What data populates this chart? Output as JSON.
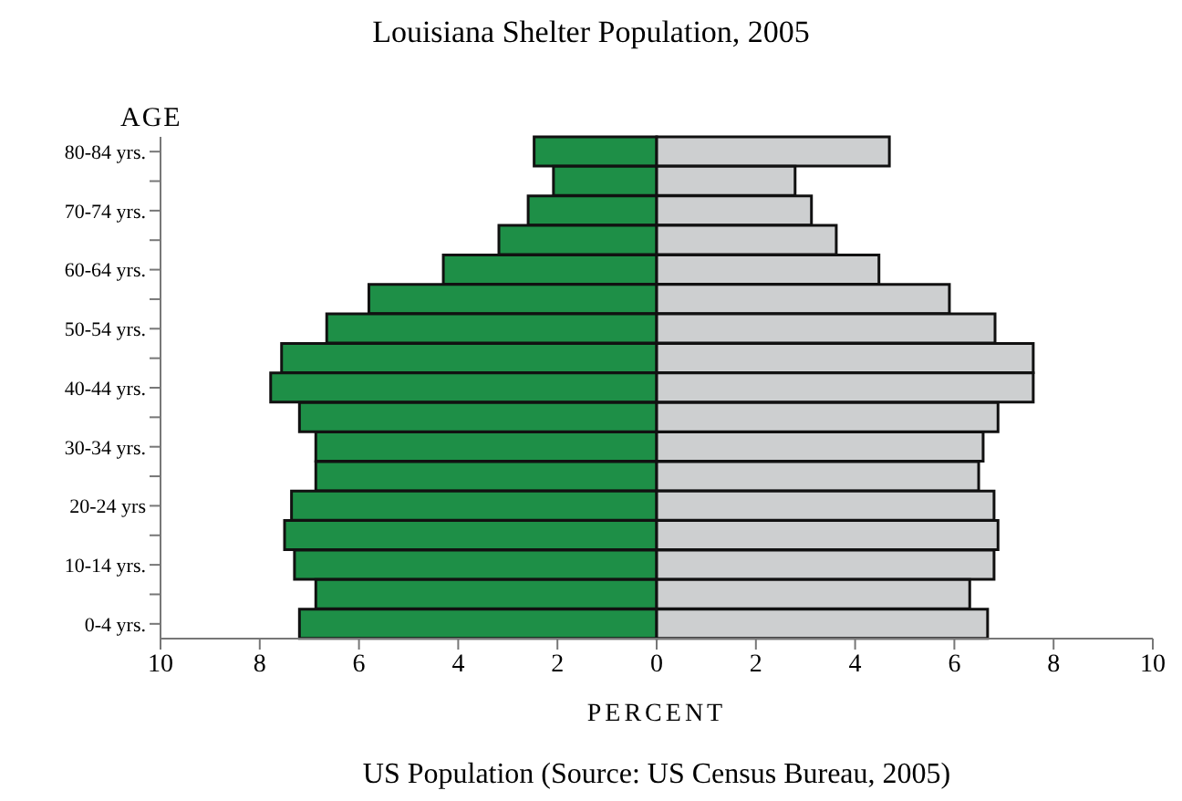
{
  "chart_data": {
    "type": "bar",
    "orientation": "horizontal",
    "stacked": true,
    "title": "Louisiana Shelter Population, 2005",
    "ylabel": "AGE",
    "xlabel": "PERCENT",
    "annotations": [
      "US Population (Source: US Census Bureau, 2005)"
    ],
    "categories": [
      "80-84 yrs.",
      null,
      "70-74 yrs.",
      null,
      "60-64 yrs.",
      null,
      "50-54 yrs.",
      null,
      "40-44 yrs.",
      null,
      "30-34 yrs.",
      null,
      "20-24 yrs",
      null,
      "10-14 yrs.",
      null,
      "0-4 yrs."
    ],
    "series": [
      {
        "color": "#1e8f47",
        "values": [
          -2.47,
          -2.08,
          -2.59,
          -3.18,
          -4.3,
          -5.8,
          -6.65,
          -7.56,
          -7.78,
          -7.2,
          -6.87,
          -6.87,
          -7.36,
          -7.5,
          -7.3,
          -6.87,
          -7.2
        ]
      },
      {
        "color": "#cdcfd0",
        "values": [
          4.69,
          2.79,
          3.12,
          3.62,
          4.48,
          5.9,
          6.82,
          7.59,
          7.59,
          6.88,
          6.58,
          6.49,
          6.8,
          6.88,
          6.8,
          6.31,
          6.67
        ]
      }
    ],
    "xlim": [
      -10,
      10
    ],
    "xticks": [
      {
        "value": -10,
        "label": "10"
      },
      {
        "value": -8,
        "label": "8"
      },
      {
        "value": -6,
        "label": "6"
      },
      {
        "value": -4,
        "label": "4"
      },
      {
        "value": -2,
        "label": "2"
      },
      0,
      2,
      4,
      6,
      8,
      10
    ],
    "grid": false,
    "legend": false
  }
}
